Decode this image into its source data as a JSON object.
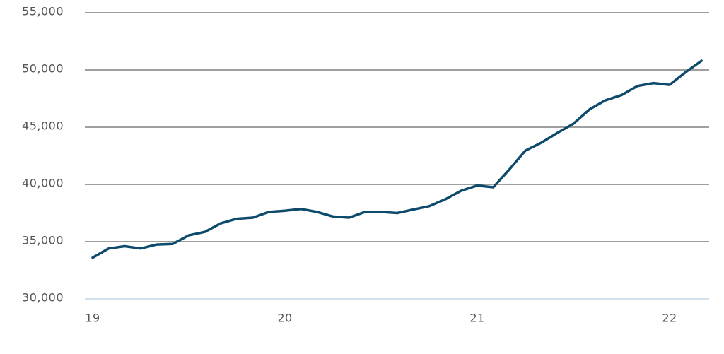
{
  "chart_data": {
    "type": "line",
    "categories": [
      "19",
      null,
      null,
      null,
      null,
      null,
      null,
      null,
      null,
      null,
      null,
      null,
      "20",
      null,
      null,
      null,
      null,
      null,
      null,
      null,
      null,
      null,
      null,
      null,
      "21",
      null,
      null,
      null,
      null,
      null,
      null,
      null,
      null,
      null,
      null,
      null,
      "22",
      null,
      null
    ],
    "series": [
      {
        "color": "#0d4a6b",
        "values": [
          33600,
          34400,
          34600,
          34400,
          34750,
          34800,
          35550,
          35850,
          36600,
          37000,
          37100,
          37600,
          37700,
          37850,
          37600,
          37200,
          37100,
          37600,
          37600,
          37500,
          37800,
          38100,
          38700,
          39450,
          39900,
          39750,
          41300,
          42950,
          43650,
          44500,
          45300,
          46550,
          47350,
          47800,
          48600,
          48850,
          48700,
          49800,
          50800
        ]
      }
    ],
    "ylim": [
      30000,
      55000
    ],
    "yticks": [
      {
        "value": 30000,
        "label": "30,000"
      },
      {
        "value": 35000,
        "label": "35,000"
      },
      {
        "value": 40000,
        "label": "40,000"
      },
      {
        "value": 45000,
        "label": "45,000"
      },
      {
        "value": 50000,
        "label": "50,000"
      },
      {
        "value": 55000,
        "label": "55,000"
      }
    ],
    "grid": true
  }
}
